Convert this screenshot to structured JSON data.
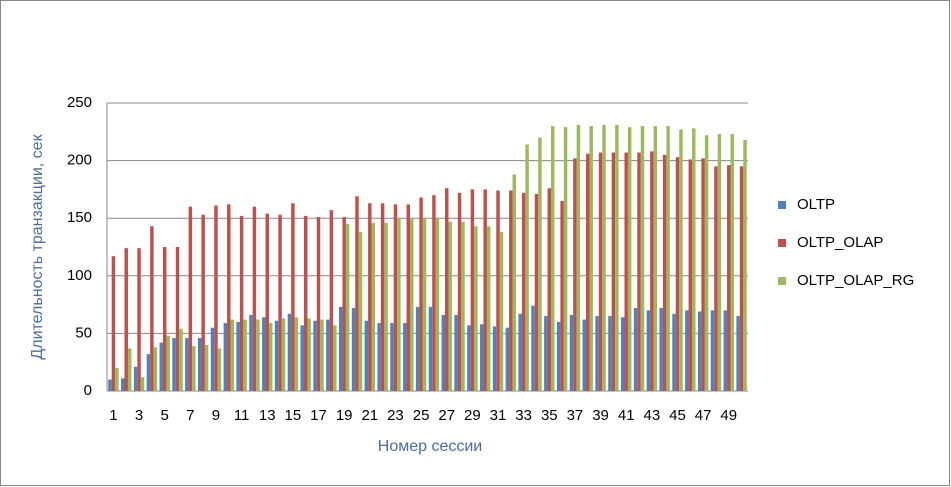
{
  "chart_data": {
    "type": "bar",
    "x_label": "Номер сессии",
    "y_label": "Длительность транзакции, сек",
    "categories": [
      1,
      null,
      3,
      null,
      5,
      null,
      7,
      null,
      9,
      null,
      11,
      null,
      13,
      null,
      15,
      null,
      17,
      null,
      19,
      null,
      21,
      null,
      23,
      null,
      25,
      null,
      27,
      null,
      29,
      null,
      31,
      null,
      33,
      null,
      35,
      null,
      37,
      null,
      39,
      null,
      41,
      null,
      43,
      null,
      45,
      null,
      47,
      null,
      49,
      null
    ],
    "series": [
      {
        "name": "OLTP",
        "color": "#4f81bd",
        "values": [
          10,
          11,
          21,
          32,
          42,
          46,
          46,
          46,
          55,
          59,
          60,
          66,
          64,
          61,
          67,
          57,
          61,
          62,
          73,
          72,
          61,
          59,
          59,
          59,
          73,
          73,
          66,
          66,
          57,
          58,
          56,
          55,
          67,
          74,
          65,
          60,
          66,
          62,
          65,
          65,
          64,
          72,
          70,
          72,
          67,
          70,
          69,
          70,
          70,
          65
        ]
      },
      {
        "name": "OLTP_OLAP",
        "color": "#c0504d",
        "values": [
          117,
          124,
          124,
          143,
          125,
          125,
          160,
          153,
          161,
          162,
          152,
          160,
          154,
          153,
          163,
          152,
          151,
          157,
          151,
          169,
          163,
          163,
          162,
          162,
          168,
          170,
          176,
          172,
          175,
          175,
          174,
          174,
          172,
          171,
          176,
          165,
          202,
          206,
          207,
          207,
          207,
          207,
          208,
          205,
          203,
          201,
          202,
          195,
          196,
          195
        ]
      },
      {
        "name": "OLTP_OLAP_RG",
        "color": "#9bbb59",
        "values": [
          20,
          37,
          12,
          38,
          48,
          54,
          39,
          40,
          37,
          62,
          62,
          62,
          59,
          63,
          64,
          63,
          62,
          57,
          145,
          138,
          146,
          146,
          150,
          150,
          150,
          150,
          147,
          147,
          143,
          143,
          138,
          188,
          214,
          220,
          230,
          229,
          231,
          230,
          231,
          231,
          229,
          230,
          230,
          230,
          227,
          228,
          222,
          223,
          223,
          218
        ]
      }
    ],
    "ylim": [
      0,
      250
    ],
    "yticks": [
      0,
      50,
      100,
      150,
      200,
      250
    ],
    "grid": true,
    "legend": "right"
  }
}
